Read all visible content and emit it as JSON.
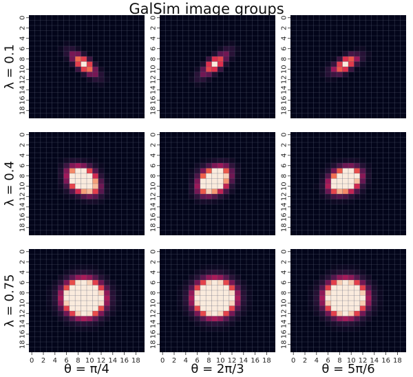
{
  "chart_data": {
    "type": "heatmap",
    "title": "GalSim image groups",
    "grid": true,
    "colormap": "rocket",
    "background_color": "#03051a",
    "grid_color": "#5a5e76",
    "tick_labels": [
      "0",
      "2",
      "4",
      "6",
      "8",
      "10",
      "12",
      "14",
      "16",
      "18"
    ],
    "image_size": [
      20,
      20
    ],
    "row_labels": [
      "λ = 0.1",
      "λ = 0.4",
      "λ = 0.75"
    ],
    "col_labels": [
      "θ = π/4",
      "θ = 2π/3",
      "θ = 5π/6"
    ],
    "panels": [
      [
        {
          "peaks": [
            [
              9.5,
              9.5,
              1.0
            ],
            [
              8.5,
              8.5,
              0.55
            ],
            [
              10.5,
              10.5,
              0.55
            ],
            [
              7.5,
              7.5,
              0.25
            ],
            [
              11.5,
              11.5,
              0.25
            ],
            [
              6.5,
              6.5,
              0.08
            ],
            [
              12.5,
              12.5,
              0.08
            ]
          ]
        },
        {
          "peaks": [
            [
              9.5,
              9.5,
              1.0
            ],
            [
              10.5,
              8.5,
              0.45
            ],
            [
              8.5,
              10.5,
              0.45
            ],
            [
              11.5,
              7.5,
              0.25
            ],
            [
              7.5,
              11.5,
              0.25
            ],
            [
              12.5,
              6.5,
              0.1
            ],
            [
              6.5,
              12.5,
              0.1
            ]
          ]
        },
        {
          "peaks": [
            [
              9.5,
              9.5,
              1.0
            ],
            [
              10.5,
              8.5,
              0.45
            ],
            [
              8.5,
              10.5,
              0.45
            ],
            [
              11.5,
              8.5,
              0.22
            ],
            [
              7.5,
              10.5,
              0.22
            ],
            [
              12.5,
              7.5,
              0.1
            ],
            [
              6.5,
              11.5,
              0.1
            ]
          ]
        }
      ],
      [
        {
          "peaks": [
            [
              8.7,
              8.7,
              0.9
            ],
            [
              10.1,
              10.1,
              0.9
            ],
            [
              9.4,
              9.4,
              0.7
            ],
            [
              7.6,
              7.6,
              0.35
            ],
            [
              11.2,
              11.2,
              0.35
            ],
            [
              8.0,
              10.3,
              0.2
            ],
            [
              10.3,
              8.0,
              0.2
            ]
          ]
        },
        {
          "peaks": [
            [
              8.7,
              10.1,
              0.9
            ],
            [
              10.1,
              8.7,
              0.9
            ],
            [
              9.4,
              9.4,
              0.7
            ],
            [
              11.2,
              7.6,
              0.35
            ],
            [
              7.6,
              11.2,
              0.35
            ],
            [
              8.0,
              8.0,
              0.2
            ],
            [
              10.5,
              10.5,
              0.2
            ]
          ]
        },
        {
          "peaks": [
            [
              8.7,
              10.1,
              0.9
            ],
            [
              10.1,
              8.7,
              0.9
            ],
            [
              9.4,
              9.4,
              0.7
            ],
            [
              11.3,
              8.1,
              0.35
            ],
            [
              7.5,
              10.7,
              0.35
            ],
            [
              8.2,
              8.2,
              0.2
            ],
            [
              10.6,
              10.6,
              0.2
            ]
          ]
        }
      ],
      [
        {
          "peaks": [
            [
              9.5,
              9.5,
              1.0
            ],
            [
              8.5,
              8.5,
              0.6
            ],
            [
              10.5,
              10.5,
              0.6
            ],
            [
              8.5,
              10.5,
              0.45
            ],
            [
              10.5,
              8.5,
              0.45
            ],
            [
              7.5,
              9.5,
              0.3
            ],
            [
              11.5,
              9.5,
              0.3
            ],
            [
              9.5,
              7.5,
              0.3
            ],
            [
              9.5,
              11.5,
              0.3
            ]
          ]
        },
        {
          "peaks": [
            [
              9.5,
              9.5,
              1.0
            ],
            [
              8.5,
              8.5,
              0.5
            ],
            [
              10.5,
              10.5,
              0.5
            ],
            [
              8.5,
              10.5,
              0.55
            ],
            [
              10.5,
              8.5,
              0.55
            ],
            [
              7.5,
              9.5,
              0.3
            ],
            [
              11.5,
              9.5,
              0.3
            ],
            [
              9.5,
              7.5,
              0.3
            ],
            [
              9.5,
              11.5,
              0.3
            ]
          ]
        },
        {
          "peaks": [
            [
              9.5,
              9.5,
              1.0
            ],
            [
              8.5,
              8.5,
              0.5
            ],
            [
              10.5,
              10.5,
              0.5
            ],
            [
              8.5,
              10.5,
              0.5
            ],
            [
              10.5,
              8.5,
              0.5
            ],
            [
              7.5,
              9.5,
              0.3
            ],
            [
              11.5,
              9.5,
              0.3
            ],
            [
              9.5,
              7.5,
              0.3
            ],
            [
              9.5,
              11.5,
              0.3
            ]
          ]
        }
      ]
    ],
    "peak_width_by_row": [
      0.75,
      1.25,
      1.75
    ]
  }
}
